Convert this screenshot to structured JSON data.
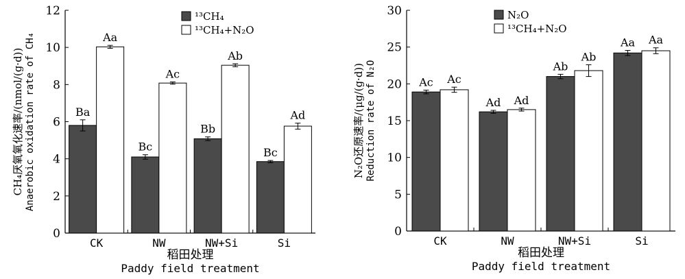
{
  "chart_data": [
    {
      "type": "bar",
      "categories": [
        "CK",
        "NW",
        "NW+Si",
        "Si"
      ],
      "series": [
        {
          "name": "13CH4",
          "legend_label": "¹³CH₄",
          "color": "#4a4a4a",
          "values": [
            5.8,
            4.1,
            5.08,
            3.85
          ],
          "errors": [
            0.3,
            0.12,
            0.1,
            0.06
          ],
          "labels": [
            "Ba",
            "Bc",
            "Bb",
            "Bc"
          ]
        },
        {
          "name": "13CH4+N2O",
          "legend_label": "¹³CH₄+N₂O",
          "color": "#ffffff",
          "values": [
            10.03,
            8.08,
            9.04,
            5.76
          ],
          "errors": [
            0.08,
            0.06,
            0.08,
            0.16
          ],
          "labels": [
            "Aa",
            "Ac",
            "Ab",
            "Ad"
          ]
        }
      ],
      "xlabel_cn": "稻田处理",
      "xlabel_en": "Paddy field treatment",
      "ylabel_cn": "CH₄厌氧氧化速率/(nmol/(g·d))",
      "ylabel_en": "Anaerobic oxidation rate of CH₄",
      "ylim": [
        0,
        12
      ],
      "yticks": [
        "0",
        "2",
        "4",
        "6",
        "8",
        "10",
        "12"
      ],
      "legend_position": "top-center",
      "grid": false
    },
    {
      "type": "bar",
      "categories": [
        "CK",
        "NW",
        "NW+Si",
        "Si"
      ],
      "series": [
        {
          "name": "N2O",
          "legend_label": "N₂O",
          "color": "#4a4a4a",
          "values": [
            18.9,
            16.2,
            21.0,
            24.2
          ],
          "errors": [
            0.25,
            0.2,
            0.3,
            0.35
          ],
          "labels": [
            "Ac",
            "Ad",
            "Ab",
            "Aa"
          ]
        },
        {
          "name": "13CH4+N2O",
          "legend_label": "¹³CH₄+N₂O",
          "color": "#ffffff",
          "values": [
            19.2,
            16.5,
            21.8,
            24.5
          ],
          "errors": [
            0.35,
            0.2,
            0.8,
            0.4
          ],
          "labels": [
            "Ac",
            "Ad",
            "Ab",
            "Aa"
          ]
        }
      ],
      "xlabel_cn": "稻田处理",
      "xlabel_en": "Paddy field treatment",
      "ylabel_cn": "N₂O还原速率/(μg/(g·d))",
      "ylabel_en": "Reduction rate of N₂O",
      "ylim": [
        0,
        30
      ],
      "yticks": [
        "0",
        "5",
        "10",
        "15",
        "20",
        "25",
        "30"
      ],
      "legend_position": "top-left",
      "grid": false
    }
  ]
}
